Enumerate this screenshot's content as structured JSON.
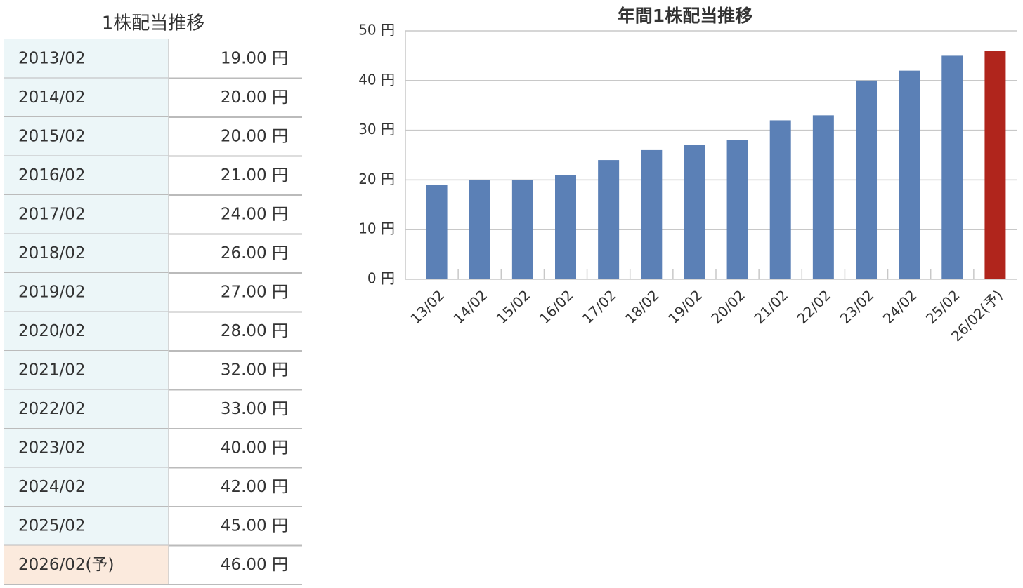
{
  "table": {
    "title": "1株配当推移",
    "rows": [
      [
        "2013/02",
        "19.00 円"
      ],
      [
        "2014/02",
        "20.00 円"
      ],
      [
        "2015/02",
        "20.00 円"
      ],
      [
        "2016/02",
        "21.00 円"
      ],
      [
        "2017/02",
        "24.00 円"
      ],
      [
        "2018/02",
        "26.00 円"
      ],
      [
        "2019/02",
        "27.00 円"
      ],
      [
        "2020/02",
        "28.00 円"
      ],
      [
        "2021/02",
        "32.00 円"
      ],
      [
        "2022/02",
        "33.00 円"
      ],
      [
        "2023/02",
        "40.00 円"
      ],
      [
        "2024/02",
        "42.00 円"
      ],
      [
        "2025/02",
        "45.00 円"
      ],
      [
        "2026/02(予)",
        "46.00 円"
      ]
    ]
  },
  "chart_data": {
    "type": "bar",
    "title": "年間1株配当推移",
    "categories": [
      "13/02",
      "14/02",
      "15/02",
      "16/02",
      "17/02",
      "18/02",
      "19/02",
      "20/02",
      "21/02",
      "22/02",
      "23/02",
      "24/02",
      "25/02",
      "26/02(予)"
    ],
    "values": [
      19,
      20,
      20,
      21,
      24,
      26,
      27,
      28,
      32,
      33,
      40,
      42,
      45,
      46
    ],
    "colors": [
      "#5b80b6",
      "#5b80b6",
      "#5b80b6",
      "#5b80b6",
      "#5b80b6",
      "#5b80b6",
      "#5b80b6",
      "#5b80b6",
      "#5b80b6",
      "#5b80b6",
      "#5b80b6",
      "#5b80b6",
      "#5b80b6",
      "#b0251c"
    ],
    "ylim": [
      0,
      50
    ],
    "yticks": [
      {
        "value": 0,
        "label": "0 円"
      },
      {
        "value": 10,
        "label": "10 円"
      },
      {
        "value": 20,
        "label": "20 円"
      },
      {
        "value": 30,
        "label": "30 円"
      },
      {
        "value": 40,
        "label": "40 円"
      },
      {
        "value": 50,
        "label": "50 円"
      }
    ],
    "grid": true
  }
}
